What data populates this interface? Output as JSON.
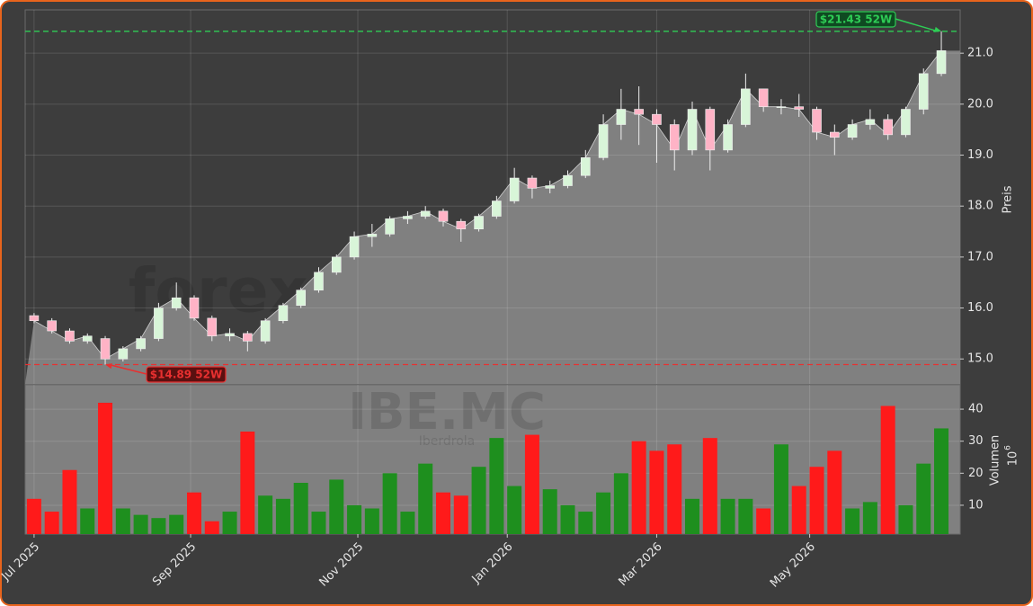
{
  "chart_data": {
    "type": "candlestick",
    "watermark": "forexsignale.trade",
    "symbol": "IBE.MC",
    "company": "Iberdrola",
    "ylabel": "Preis",
    "y2label": "Volumen",
    "volume_scale": {
      "base": "10",
      "exponent": "6"
    },
    "x": [
      2,
      7,
      12,
      17,
      22,
      27,
      32,
      37,
      42,
      47,
      52,
      57,
      62,
      67,
      72,
      77,
      82,
      87,
      92,
      97,
      102,
      107,
      112,
      117,
      122,
      127,
      132,
      137,
      142,
      147,
      152,
      157,
      162,
      167,
      172,
      177,
      182,
      187,
      192,
      197,
      202,
      207,
      212,
      217,
      222,
      227,
      232,
      237,
      242,
      247,
      252,
      257
    ],
    "open": [
      15.85,
      15.75,
      15.55,
      15.35,
      15.4,
      15.0,
      15.2,
      15.4,
      16.0,
      16.2,
      15.8,
      15.45,
      15.5,
      15.35,
      15.75,
      16.05,
      16.35,
      16.7,
      17.0,
      17.4,
      17.45,
      17.75,
      17.8,
      17.9,
      17.7,
      17.55,
      17.8,
      18.1,
      18.55,
      18.35,
      18.4,
      18.6,
      18.95,
      19.6,
      19.9,
      19.8,
      19.6,
      19.1,
      19.9,
      19.1,
      19.6,
      20.3,
      19.95,
      19.95,
      19.9,
      19.45,
      19.35,
      19.6,
      19.7,
      19.4,
      19.9,
      20.6
    ],
    "high": [
      15.9,
      15.8,
      15.6,
      15.5,
      15.45,
      15.25,
      15.45,
      16.1,
      16.5,
      16.25,
      15.85,
      15.6,
      15.55,
      15.8,
      16.1,
      16.4,
      16.8,
      17.05,
      17.5,
      17.65,
      17.8,
      17.9,
      18.0,
      17.95,
      17.75,
      17.85,
      18.2,
      18.75,
      18.6,
      18.5,
      18.7,
      19.1,
      19.8,
      20.3,
      20.35,
      19.9,
      19.7,
      20.05,
      19.95,
      19.7,
      20.6,
      20.3,
      20.1,
      20.2,
      19.95,
      19.6,
      19.7,
      19.9,
      19.8,
      19.95,
      20.7,
      21.43
    ],
    "low": [
      15.7,
      15.5,
      15.3,
      15.3,
      14.89,
      14.95,
      15.15,
      15.35,
      15.95,
      15.75,
      15.35,
      15.35,
      15.15,
      15.3,
      15.7,
      16.0,
      16.3,
      16.65,
      16.95,
      17.2,
      17.4,
      17.65,
      17.75,
      17.6,
      17.3,
      17.5,
      17.75,
      18.05,
      18.15,
      18.25,
      18.35,
      18.55,
      18.9,
      19.3,
      19.2,
      18.85,
      18.7,
      19.0,
      18.7,
      19.05,
      19.55,
      19.85,
      19.8,
      19.75,
      19.3,
      19.0,
      19.3,
      19.5,
      19.3,
      19.35,
      19.8,
      20.55
    ],
    "close": [
      15.75,
      15.55,
      15.35,
      15.45,
      15.0,
      15.2,
      15.4,
      16.0,
      16.2,
      15.8,
      15.45,
      15.5,
      15.35,
      15.75,
      16.05,
      16.35,
      16.7,
      17.0,
      17.4,
      17.45,
      17.75,
      17.8,
      17.9,
      17.7,
      17.55,
      17.8,
      18.1,
      18.55,
      18.35,
      18.4,
      18.6,
      18.95,
      19.6,
      19.9,
      19.8,
      19.6,
      19.1,
      19.9,
      19.1,
      19.6,
      20.3,
      19.95,
      19.95,
      19.9,
      19.45,
      19.35,
      19.6,
      19.7,
      19.4,
      19.9,
      20.6,
      21.05
    ],
    "volume": [
      12,
      8,
      21,
      9,
      42,
      9,
      7,
      6,
      7,
      14,
      5,
      8,
      33,
      13,
      12,
      17,
      8,
      18,
      10,
      9,
      20,
      8,
      23,
      14,
      13,
      22,
      31,
      16,
      32,
      15,
      10,
      8,
      14,
      20,
      30,
      27,
      29,
      12,
      31,
      12,
      12,
      9,
      29,
      16,
      22,
      27,
      9,
      11,
      41,
      10,
      23,
      34
    ],
    "up_color": "#d8f5d8",
    "down_color": "#ffb3c6",
    "volume_up_color": "#1e8f1e",
    "volume_down_color": "#ff1a1a",
    "area_color": "#808080",
    "xlim": [
      -0.5,
      262.3
    ],
    "xticks": [
      {
        "value": 2,
        "label": "Jul 2025"
      },
      {
        "value": 46,
        "label": "Sep 2025"
      },
      {
        "value": 93,
        "label": "Nov 2025"
      },
      {
        "value": 135,
        "label": "Jan 2026"
      },
      {
        "value": 177,
        "label": "Mar 2026"
      },
      {
        "value": 220,
        "label": "May 2026"
      }
    ],
    "ylim": [
      14.51,
      21.85
    ],
    "yticks": [
      {
        "value": 15,
        "label": "15.0"
      },
      {
        "value": 16,
        "label": "16.0"
      },
      {
        "value": 17,
        "label": "17.0"
      },
      {
        "value": 18,
        "label": "18.0"
      },
      {
        "value": 19,
        "label": "19.0"
      },
      {
        "value": 20,
        "label": "20.0"
      },
      {
        "value": 21,
        "label": "21.0"
      }
    ],
    "y2lim": [
      1,
      47.6
    ],
    "y2ticks": [
      10,
      20,
      30,
      40
    ],
    "grid": true,
    "annotations": [
      {
        "text": "$21.43 52W",
        "value": 21.43,
        "color": "#2ecc55"
      },
      {
        "text": "$14.89 52W",
        "value": 14.89,
        "color": "#e83030"
      }
    ]
  }
}
